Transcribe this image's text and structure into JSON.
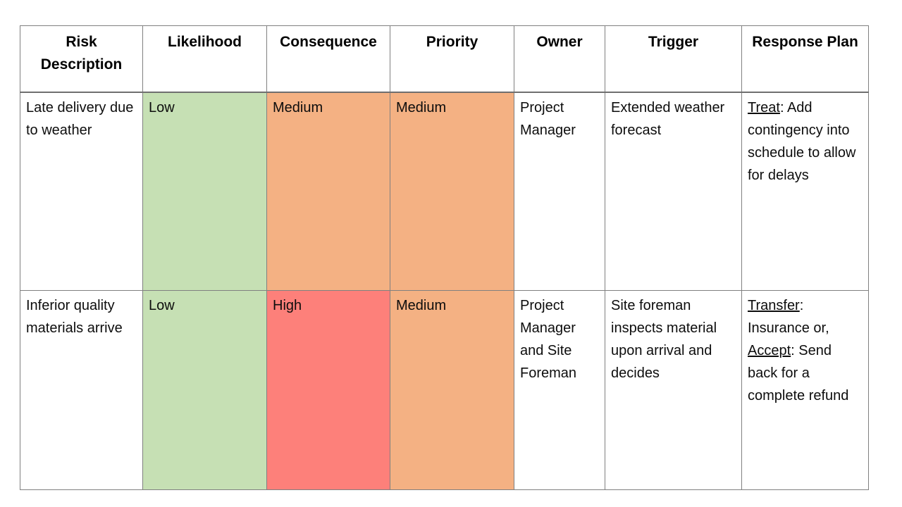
{
  "table": {
    "title": "Risk register table",
    "border_color": "#808080",
    "header_divider_color": "#6f6f6f",
    "severity_colors": {
      "low": "#c6e0b4",
      "medium": "#f4b183",
      "high": "#fd807a"
    },
    "headers": [
      "Risk Description",
      "Likelihood",
      "Consequence",
      "Priority",
      "Owner",
      "Trigger",
      "Response Plan"
    ],
    "rows": [
      {
        "risk_description": "Late delivery due to weather",
        "likelihood": {
          "label": "Low",
          "bg": "#c6e0b4"
        },
        "consequence": {
          "label": "Medium",
          "bg": "#f4b183"
        },
        "priority": {
          "label": "Medium",
          "bg": "#f4b183"
        },
        "owner": "Project Manager",
        "trigger": "Extended weather forecast",
        "response_plan": [
          {
            "text": "Treat",
            "underline": true
          },
          {
            "text": ": Add contingency into schedule to allow for delays",
            "underline": false
          }
        ]
      },
      {
        "risk_description": "Inferior quality materials arrive",
        "likelihood": {
          "label": "Low",
          "bg": "#c6e0b4"
        },
        "consequence": {
          "label": "High",
          "bg": "#fd807a"
        },
        "priority": {
          "label": "Medium",
          "bg": "#f4b183"
        },
        "owner": "Project Manager and Site Foreman",
        "trigger": "Site foreman inspects material upon arrival and decides",
        "response_plan": [
          {
            "text": "Transfer",
            "underline": true
          },
          {
            "text": ": Insurance or, ",
            "underline": false
          },
          {
            "text": "Accept",
            "underline": true
          },
          {
            "text": ": Send back for a complete refund",
            "underline": false
          }
        ]
      }
    ]
  }
}
